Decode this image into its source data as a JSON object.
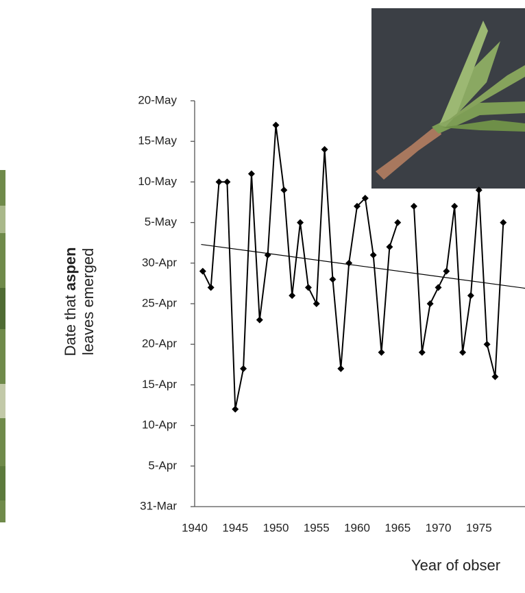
{
  "chart_data": {
    "type": "line",
    "y_label_lead": "Date that ",
    "y_label_bold": "aspen",
    "y_label_second_line": "leaves emerged",
    "x_label": "Year of obser",
    "x": [
      1941,
      1942,
      1943,
      1944,
      1945,
      1946,
      1947,
      1948,
      1949,
      1950,
      1951,
      1952,
      1953,
      1954,
      1955,
      1956,
      1957,
      1958,
      1959,
      1960,
      1961,
      1962,
      1963,
      1964,
      1965,
      1966,
      1967,
      1968,
      1969,
      1970,
      1971,
      1972,
      1973,
      1974,
      1975,
      1976,
      1977,
      1978
    ],
    "series": [
      {
        "color": "#000000",
        "values": [
          29,
          27,
          40,
          40,
          12,
          17,
          41,
          23,
          31,
          47,
          39,
          26,
          35,
          27,
          25,
          44,
          28,
          17,
          30,
          37,
          38,
          31,
          19,
          32,
          35,
          null,
          37,
          19,
          25,
          27,
          29,
          37,
          19,
          26,
          39,
          20,
          16,
          35
        ]
      }
    ],
    "trendline": {
      "color": "#000000",
      "x": [
        1940.8,
        1980.7
      ],
      "values": [
        32.3,
        26.9
      ]
    },
    "xlim": [
      1940,
      1980
    ],
    "xticks": [
      1940,
      1945,
      1950,
      1955,
      1960,
      1965,
      1970,
      1975
    ],
    "ylim": [
      0,
      50
    ],
    "yticks": [
      {
        "value": 0,
        "label": "31-Mar"
      },
      {
        "value": 5,
        "label": "5-Apr"
      },
      {
        "value": 10,
        "label": "10-Apr"
      },
      {
        "value": 15,
        "label": "15-Apr"
      },
      {
        "value": 20,
        "label": "20-Apr"
      },
      {
        "value": 25,
        "label": "25-Apr"
      },
      {
        "value": 30,
        "label": "30-Apr"
      },
      {
        "value": 35,
        "label": "5-May"
      },
      {
        "value": 40,
        "label": "10-May"
      },
      {
        "value": 45,
        "label": "15-May"
      },
      {
        "value": 50,
        "label": "20-May"
      }
    ]
  }
}
